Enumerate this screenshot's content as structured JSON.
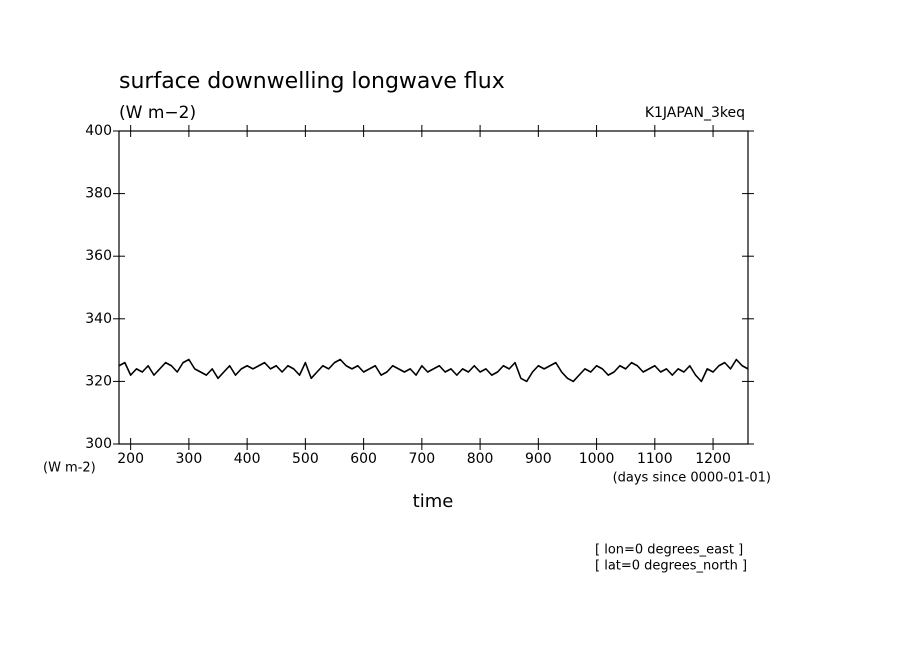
{
  "chart_data": {
    "type": "line",
    "title": "surface downwelling longwave flux",
    "subtitle": "(W m−2)",
    "dataset_label": "K1JAPAN_3keq",
    "y_units_label": "(W m-2)",
    "x_units_label": "(days since 0000-01-01)",
    "xlabel": "time",
    "annotations": [
      "[ lon=0 degrees_east ]",
      "[ lat=0 degrees_north ]"
    ],
    "xlim": [
      180,
      1260
    ],
    "ylim": [
      300,
      400
    ],
    "xticks": [
      200,
      300,
      400,
      500,
      600,
      700,
      800,
      900,
      1000,
      1100,
      1200
    ],
    "yticks": [
      300,
      320,
      340,
      360,
      380,
      400
    ],
    "grid": false,
    "x": [
      180,
      190,
      200,
      210,
      220,
      230,
      240,
      250,
      260,
      270,
      280,
      290,
      300,
      310,
      320,
      330,
      340,
      350,
      360,
      370,
      380,
      390,
      400,
      410,
      420,
      430,
      440,
      450,
      460,
      470,
      480,
      490,
      500,
      510,
      520,
      530,
      540,
      550,
      560,
      570,
      580,
      590,
      600,
      610,
      620,
      630,
      640,
      650,
      660,
      670,
      680,
      690,
      700,
      710,
      720,
      730,
      740,
      750,
      760,
      770,
      780,
      790,
      800,
      810,
      820,
      830,
      840,
      850,
      860,
      870,
      880,
      890,
      900,
      910,
      920,
      930,
      940,
      950,
      960,
      970,
      980,
      990,
      1000,
      1010,
      1020,
      1030,
      1040,
      1050,
      1060,
      1070,
      1080,
      1090,
      1100,
      1110,
      1120,
      1130,
      1140,
      1150,
      1160,
      1170,
      1180,
      1190,
      1200,
      1210,
      1220,
      1230,
      1240,
      1250,
      1260
    ],
    "series": [
      {
        "color": "#000000",
        "values": [
          325,
          326,
          322,
          324,
          323,
          325,
          322,
          324,
          326,
          325,
          323,
          326,
          327,
          324,
          323,
          322,
          324,
          321,
          323,
          325,
          322,
          324,
          325,
          324,
          325,
          326,
          324,
          325,
          323,
          325,
          324,
          322,
          326,
          321,
          323,
          325,
          324,
          326,
          327,
          325,
          324,
          325,
          323,
          324,
          325,
          322,
          323,
          325,
          324,
          323,
          324,
          322,
          325,
          323,
          324,
          325,
          323,
          324,
          322,
          324,
          323,
          325,
          323,
          324,
          322,
          323,
          325,
          324,
          326,
          321,
          320,
          323,
          325,
          324,
          325,
          326,
          323,
          321,
          320,
          322,
          324,
          323,
          325,
          324,
          322,
          323,
          325,
          324,
          326,
          325,
          323,
          324,
          325,
          323,
          324,
          322,
          324,
          323,
          325,
          322,
          320,
          324,
          323,
          325,
          326,
          324,
          327,
          325,
          324
        ]
      }
    ]
  }
}
